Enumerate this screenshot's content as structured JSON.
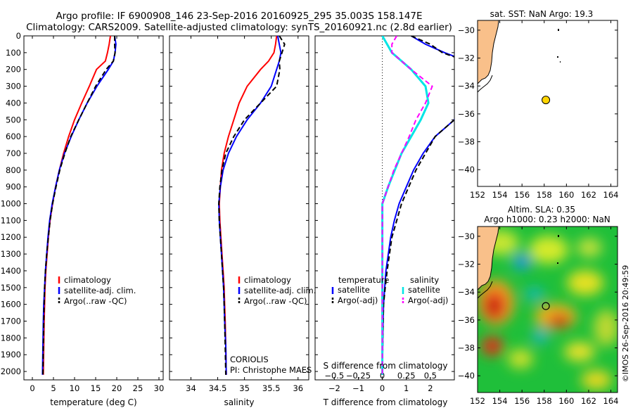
{
  "header": {
    "line1": "Argo profile: IF 6900908_146 23-Sep-2016 20160925_295 35.003S 158.147E",
    "line2": "Climatology: CARS2009. Satellite-adjusted climatology: synTS_20160921.nc (2.8d earlier)"
  },
  "side_text": "©IMOS 26-Sep-2016 20:49:59",
  "colors": {
    "climatology": "#ff0000",
    "satellite": "#0000ff",
    "argo": "#000000",
    "salinity_sat": "#00e5e5",
    "salinity_argo": "#ff00ff",
    "land": "#f9c08a",
    "float_marker": "#ffd500"
  },
  "chart_data": [
    {
      "type": "line",
      "name": "temperature-profile",
      "xlabel": "temperature (deg C)",
      "ylabel": "",
      "xlim": [
        -2,
        31
      ],
      "ylim": [
        2050,
        0
      ],
      "x_ticks": [
        0,
        5,
        10,
        15,
        20,
        25,
        30
      ],
      "y_ticks": [
        0,
        100,
        200,
        300,
        400,
        500,
        600,
        700,
        800,
        900,
        1000,
        1100,
        1200,
        1300,
        1400,
        1500,
        1600,
        1700,
        1800,
        1900,
        2000
      ],
      "legend": [
        "climatology",
        "satellite-adj. clim.",
        "Argo(..raw -QC)"
      ],
      "series": [
        {
          "name": "climatology",
          "style": "solid",
          "x": [
            18.5,
            18.2,
            17.8,
            17.3,
            15.2,
            13.5,
            11.7,
            10.0,
            8.6,
            7.4,
            6.4,
            5.5,
            4.8,
            4.2,
            3.8,
            3.5,
            3.2,
            3.0,
            2.9,
            2.8,
            2.7,
            2.6
          ],
          "y": [
            0,
            50,
            100,
            150,
            200,
            300,
            400,
            500,
            600,
            700,
            800,
            900,
            1000,
            1100,
            1200,
            1300,
            1400,
            1500,
            1600,
            1700,
            1850,
            2020
          ]
        },
        {
          "name": "satellite-adj. clim.",
          "style": "solid",
          "x": [
            19.5,
            19.8,
            19.6,
            19.2,
            18.0,
            15.3,
            13.0,
            11.0,
            9.2,
            7.6,
            6.4,
            5.5,
            4.7,
            4.1,
            3.7,
            3.4,
            3.1,
            2.9,
            2.7,
            2.6,
            2.5,
            2.4
          ],
          "y": [
            0,
            50,
            100,
            150,
            200,
            300,
            400,
            500,
            600,
            700,
            800,
            900,
            1000,
            1100,
            1200,
            1300,
            1400,
            1500,
            1600,
            1700,
            1850,
            2020
          ]
        },
        {
          "name": "Argo(..raw -QC)",
          "style": "dashed",
          "x": [
            19.5,
            19.5,
            19.6,
            19.2,
            17.5,
            15.0,
            13.0,
            11.0,
            9.1,
            7.7,
            6.5,
            5.6,
            4.8,
            4.2,
            3.8,
            3.4,
            3.1,
            2.9,
            2.8,
            2.7,
            2.6,
            2.5
          ],
          "y": [
            0,
            50,
            100,
            150,
            200,
            300,
            400,
            500,
            600,
            700,
            800,
            900,
            1000,
            1100,
            1200,
            1300,
            1400,
            1500,
            1600,
            1700,
            1850,
            2020
          ]
        }
      ]
    },
    {
      "type": "line",
      "name": "salinity-profile",
      "xlabel": "salinity",
      "ylabel": "",
      "xlim": [
        33.6,
        36.2
      ],
      "ylim": [
        2050,
        0
      ],
      "x_ticks": [
        34,
        34.5,
        35,
        35.5,
        36
      ],
      "legend": [
        "climatology",
        "satellite-adj. clim.",
        "Argo(..raw -QC)"
      ],
      "annotations": [
        "CORIOLIS",
        "PI: Christophe MAES"
      ],
      "series": [
        {
          "name": "climatology",
          "style": "solid",
          "x": [
            35.6,
            35.58,
            35.55,
            35.45,
            35.3,
            35.05,
            34.9,
            34.8,
            34.7,
            34.62,
            34.57,
            34.55,
            34.53,
            34.54,
            34.56,
            34.58,
            34.6,
            34.62,
            34.63,
            34.64,
            34.65,
            34.66
          ],
          "y": [
            0,
            50,
            100,
            150,
            200,
            300,
            400,
            500,
            600,
            700,
            800,
            900,
            1000,
            1100,
            1200,
            1300,
            1400,
            1500,
            1600,
            1700,
            1850,
            2020
          ]
        },
        {
          "name": "satellite-adj. clim.",
          "style": "solid",
          "x": [
            35.62,
            35.65,
            35.68,
            35.65,
            35.6,
            35.5,
            35.3,
            35.05,
            34.85,
            34.7,
            34.6,
            34.55,
            34.52,
            34.53,
            34.55,
            34.57,
            34.59,
            34.61,
            34.62,
            34.63,
            34.65,
            34.66
          ],
          "y": [
            0,
            50,
            100,
            150,
            200,
            300,
            400,
            500,
            600,
            700,
            800,
            900,
            1000,
            1100,
            1200,
            1300,
            1400,
            1500,
            1600,
            1700,
            1850,
            2020
          ]
        },
        {
          "name": "Argo(..raw -QC)",
          "style": "dashed",
          "x": [
            35.65,
            35.75,
            35.7,
            35.65,
            35.66,
            35.6,
            35.3,
            35.0,
            34.8,
            34.65,
            34.58,
            34.54,
            34.52,
            34.53,
            34.55,
            34.57,
            34.59,
            34.61,
            34.62,
            34.63,
            34.64,
            34.65
          ],
          "y": [
            0,
            50,
            100,
            150,
            200,
            300,
            400,
            500,
            600,
            700,
            800,
            900,
            1000,
            1100,
            1200,
            1300,
            1400,
            1500,
            1600,
            1700,
            1850,
            2020
          ]
        }
      ]
    },
    {
      "type": "line",
      "name": "difference-profile",
      "xlabel": "T difference from climatology",
      "x2label": "S difference from climatology",
      "xlim": [
        -2.8,
        3.0
      ],
      "ylim": [
        2050,
        0
      ],
      "x_ticks": [
        -2,
        -1,
        0,
        1,
        2
      ],
      "x2_ticks": [
        -0.5,
        -0.25,
        0,
        0.25,
        0.5
      ],
      "x2_ticks_labels": [
        "−0.5",
        "−0.25",
        "0",
        "0.25",
        "0.5"
      ],
      "x_ticks_labels": [
        "−2",
        "−1",
        "0",
        "1",
        "2"
      ],
      "legend_groups": [
        {
          "title": "temperature",
          "items": [
            "satellite",
            "Argo(-adj)"
          ]
        },
        {
          "title": "salinity",
          "items": [
            "satellite",
            "Argo(-adj)"
          ]
        }
      ],
      "series": [
        {
          "name": "temperature satellite",
          "style": "solid",
          "x": [
            1.2,
            1.8,
            2.6,
            3.5,
            3.5,
            3.5,
            3.5,
            3.0,
            2.2,
            1.7,
            1.3,
            1.0,
            0.7,
            0.5,
            0.35,
            0.25,
            0.15,
            0.1,
            0.05,
            0.02,
            0.0
          ],
          "y": [
            0,
            50,
            100,
            150,
            200,
            300,
            400,
            500,
            600,
            700,
            800,
            900,
            1000,
            1100,
            1200,
            1300,
            1400,
            1500,
            1600,
            1800,
            2020
          ]
        },
        {
          "name": "temperature Argo(-adj)",
          "style": "dashed",
          "x": [
            1.2,
            2.0,
            2.5,
            3.5,
            3.5,
            3.5,
            3.5,
            3.0,
            2.2,
            1.8,
            1.4,
            1.1,
            0.8,
            0.6,
            0.4,
            0.3,
            0.2,
            0.12,
            0.05,
            0.02,
            0.0
          ],
          "y": [
            0,
            50,
            100,
            150,
            200,
            300,
            400,
            500,
            600,
            700,
            800,
            900,
            1000,
            1100,
            1200,
            1300,
            1400,
            1500,
            1600,
            1800,
            2020
          ]
        },
        {
          "name": "salinity satellite",
          "style": "solid",
          "x": [
            0.0,
            0.05,
            0.1,
            0.2,
            0.3,
            0.45,
            0.48,
            0.4,
            0.3,
            0.2,
            0.13,
            0.06,
            0.0,
            0.0,
            0.0,
            0.0,
            0.0,
            0.0,
            0.0,
            0.0,
            0.0
          ],
          "y": [
            0,
            50,
            100,
            150,
            200,
            300,
            400,
            500,
            600,
            700,
            800,
            900,
            1000,
            1100,
            1200,
            1300,
            1400,
            1500,
            1600,
            1800,
            2020
          ]
        },
        {
          "name": "salinity Argo(-adj)",
          "style": "dashed",
          "x": [
            0.15,
            0.1,
            0.1,
            0.2,
            0.3,
            0.52,
            0.45,
            0.35,
            0.28,
            0.2,
            0.12,
            0.06,
            0.0,
            0.0,
            0.0,
            0.0,
            0.0,
            0.0,
            0.0,
            0.0,
            0.0
          ],
          "y": [
            0,
            50,
            100,
            150,
            200,
            300,
            400,
            500,
            600,
            700,
            800,
            900,
            1000,
            1100,
            1200,
            1300,
            1400,
            1500,
            1600,
            1800,
            2020
          ]
        }
      ]
    },
    {
      "type": "scatter",
      "name": "sst-map",
      "title": "sat. SST: NaN Argo: 19.3",
      "xlim": [
        152,
        164.6
      ],
      "ylim": [
        -41.2,
        -29.3
      ],
      "x_ticks": [
        152,
        154,
        156,
        158,
        160,
        162,
        164
      ],
      "y_ticks": [
        -30,
        -32,
        -34,
        -36,
        -38,
        -40
      ],
      "float": {
        "lon": 158.147,
        "lat": -35.003
      }
    },
    {
      "type": "heatmap",
      "name": "sla-map",
      "title": "Altim. SLA: 0.35",
      "subtitle": "Argo h1000: 0.23 h2000: NaN",
      "xlim": [
        152,
        164.6
      ],
      "ylim": [
        -41.2,
        -29.3
      ],
      "x_ticks": [
        152,
        154,
        156,
        158,
        160,
        162,
        164
      ],
      "y_ticks": [
        -30,
        -32,
        -34,
        -36,
        -38,
        -40
      ],
      "float": {
        "lon": 158.147,
        "lat": -35.003
      }
    }
  ]
}
